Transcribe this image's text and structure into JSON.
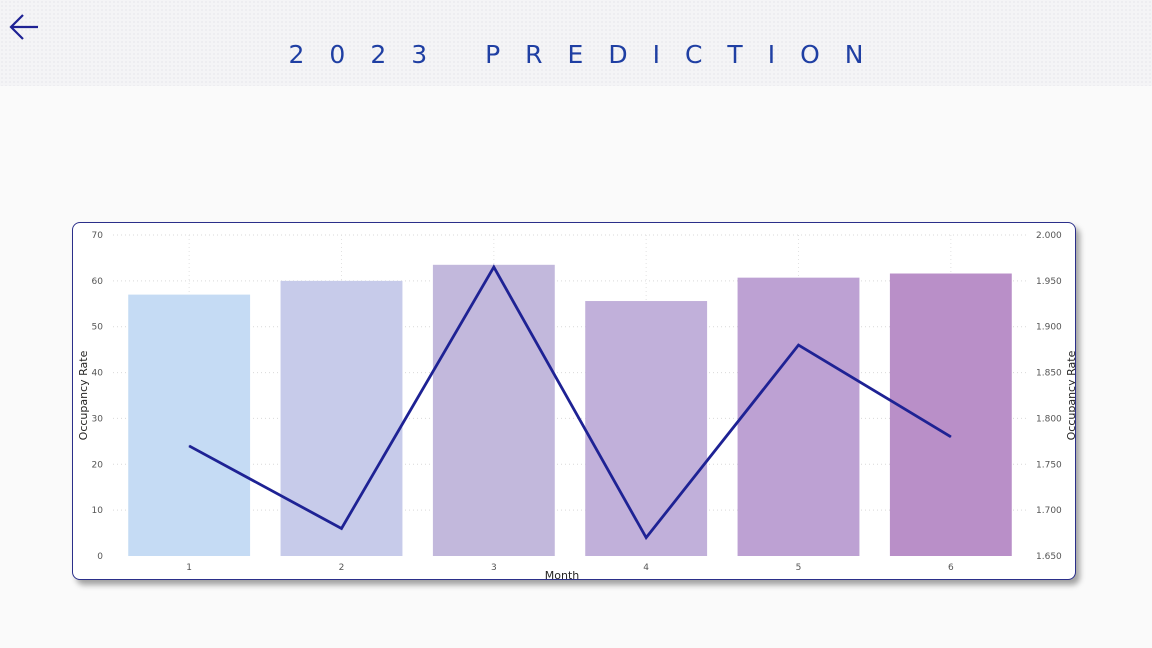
{
  "header": {
    "title": "2023 PREDICTION",
    "back_icon": "arrow-left-icon"
  },
  "colors": {
    "title": "#1f3fa3",
    "line": "#1e2294",
    "card_border": "#2b2f8a",
    "bars": [
      "#c5dbf4",
      "#c7cbea",
      "#c2b8dc",
      "#c1b0da",
      "#bda1d3",
      "#b98fc8"
    ]
  },
  "chart_data": {
    "type": "bar",
    "categories": [
      "1",
      "2",
      "3",
      "4",
      "5",
      "6"
    ],
    "series": [
      {
        "type": "bar",
        "axis": "left",
        "values": [
          57,
          60,
          63.5,
          55.6,
          60.7,
          61.6
        ]
      },
      {
        "type": "line",
        "axis": "right",
        "values": [
          1.77,
          1.68,
          1.965,
          1.67,
          1.88,
          1.78
        ]
      }
    ],
    "xlabel": "Month",
    "ylabel": "Occupancy Rate",
    "y2label": "Occupancy Rate",
    "ylim": [
      0,
      70
    ],
    "y2lim": [
      1.65,
      2.0
    ],
    "yticks": [
      "0",
      "10",
      "20",
      "30",
      "40",
      "50",
      "60",
      "70"
    ],
    "y2ticks": [
      "1.650",
      "1.700",
      "1.750",
      "1.800",
      "1.850",
      "1.900",
      "1.950",
      "2.000"
    ],
    "grid": true
  }
}
